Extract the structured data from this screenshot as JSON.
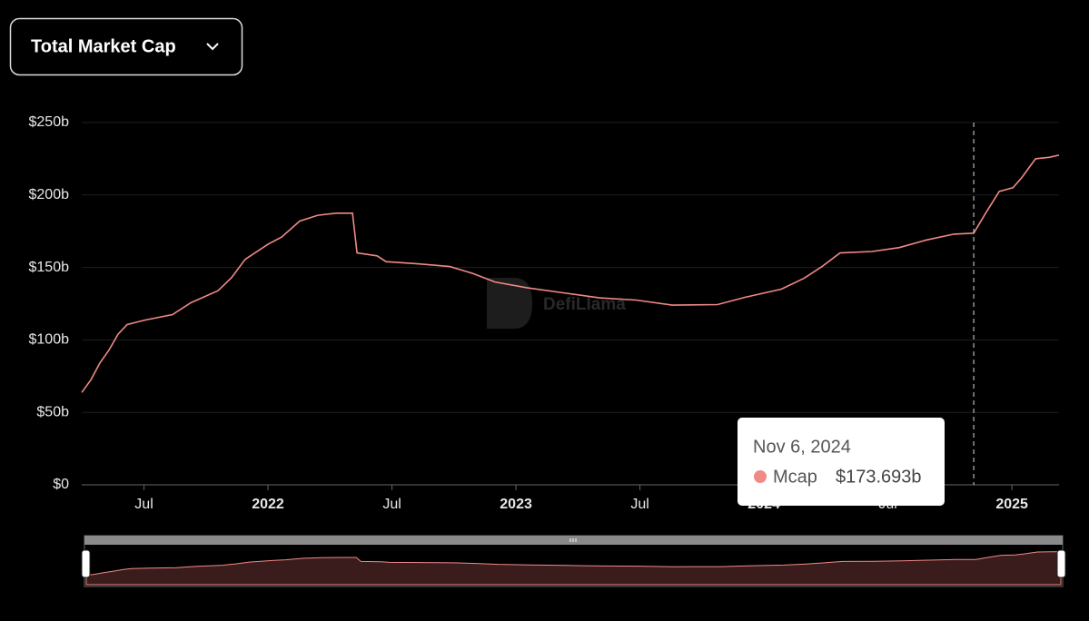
{
  "dropdown": "Total Market Cap",
  "watermark": "DefiLlama",
  "chart_data": {
    "type": "line",
    "x": [
      2021.249,
      2021.286,
      2021.322,
      2021.359,
      2021.396,
      2021.432,
      2021.505,
      2021.615,
      2021.689,
      2021.799,
      2021.853,
      2021.908,
      2022.0,
      2022.055,
      2022.128,
      2022.201,
      2022.275,
      2022.341,
      2022.359,
      2022.44,
      2022.476,
      2022.604,
      2022.733,
      2022.824,
      2022.916,
      2023.044,
      2023.19,
      2023.337,
      2023.484,
      2023.63,
      2023.813,
      2023.923,
      2024.07,
      2024.161,
      2024.234,
      2024.307,
      2024.436,
      2024.546,
      2024.656,
      2024.766,
      2024.846,
      2024.894,
      2024.949,
      2025.004,
      2025.04,
      2025.095,
      2025.15,
      2025.19
    ],
    "series": [
      {
        "name": "Mcap",
        "color": "#f08a86",
        "values": [
          63.75,
          72.5,
          84,
          93,
          104,
          110.6,
          113.75,
          117.5,
          125.6,
          134,
          143,
          155.6,
          166,
          171,
          182,
          186,
          187.5,
          187.5,
          160,
          158,
          154,
          152.5,
          150.6,
          146,
          140,
          136,
          132.5,
          129,
          127.5,
          124,
          124.4,
          129.4,
          135,
          142.5,
          150.6,
          160,
          161,
          163.75,
          169,
          173,
          173.693,
          187.5,
          202.5,
          205,
          212,
          225,
          226,
          227.5
        ]
      }
    ],
    "xlim": [
      2021.249,
      2025.19
    ],
    "xticks": [
      {
        "value": 2021.5,
        "label": "Jul"
      },
      2022,
      {
        "value": 2022.5,
        "label": "Jul"
      },
      2023,
      {
        "value": 2023.5,
        "label": "Jul"
      },
      2024,
      {
        "value": 2024.5,
        "label": "Jul"
      },
      2025
    ],
    "ylim": [
      0,
      250
    ],
    "yticks": [
      {
        "value": 0,
        "label": "$0"
      },
      {
        "value": 50,
        "label": "$50b"
      },
      {
        "value": 100,
        "label": "$100b"
      },
      {
        "value": 150,
        "label": "$150b"
      },
      {
        "value": 200,
        "label": "$200b"
      },
      {
        "value": 250,
        "label": "$250b"
      }
    ],
    "grid": true,
    "tooltip": {
      "x": 2024.846,
      "date": "Nov 6, 2024",
      "series": "Mcap",
      "value": 173.693,
      "value_label": "$173.693b"
    }
  }
}
